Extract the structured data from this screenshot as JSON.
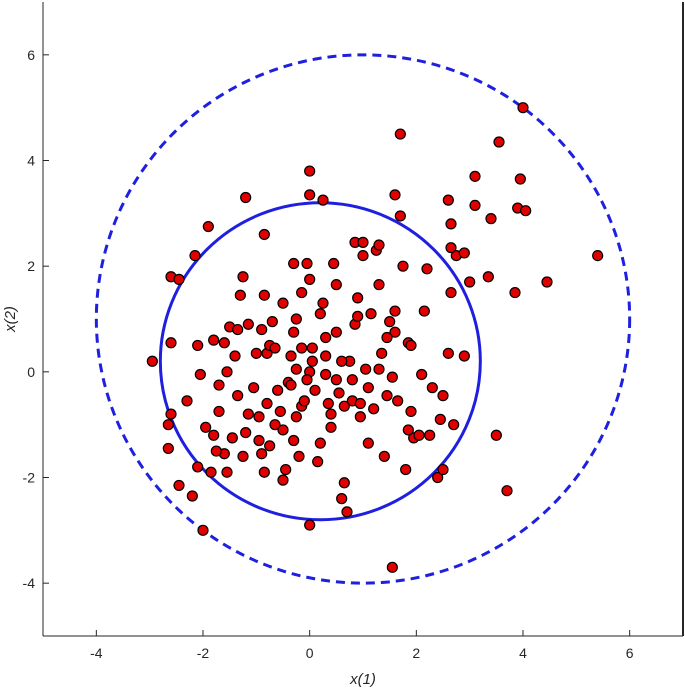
{
  "chart_data": {
    "type": "scatter",
    "title": "",
    "xlabel": "x(1)",
    "ylabel": "x(2)",
    "xlim": [
      -5,
      7
    ],
    "ylim": [
      -5,
      7
    ],
    "xticks": [
      -4,
      -2,
      0,
      2,
      4,
      6
    ],
    "yticks": [
      -4,
      -2,
      0,
      2,
      4,
      6
    ],
    "grid": false,
    "colors": {
      "marker_fill": "#e00000",
      "marker_edge": "#000000",
      "circle": "#1f1fe0"
    },
    "circles": [
      {
        "style": "solid",
        "center": [
          0.2,
          0.2
        ],
        "radius": 3.0
      },
      {
        "style": "dashed",
        "center": [
          1.0,
          1.0
        ],
        "radius": 5.0
      }
    ],
    "points": [
      [
        -2.95,
        0.2
      ],
      [
        -2.6,
        -0.8
      ],
      [
        -2.65,
        -1.45
      ],
      [
        -2.65,
        -1.0
      ],
      [
        -2.45,
        -2.15
      ],
      [
        -2.2,
        -2.35
      ],
      [
        -2.0,
        -3.0
      ],
      [
        -2.6,
        1.8
      ],
      [
        -2.45,
        1.75
      ],
      [
        -2.15,
        2.2
      ],
      [
        -1.9,
        2.75
      ],
      [
        -1.2,
        3.3
      ],
      [
        -0.85,
        2.6
      ],
      [
        -2.1,
        0.5
      ],
      [
        -1.95,
        -1.05
      ],
      [
        -1.85,
        -1.9
      ],
      [
        -1.8,
        -1.2
      ],
      [
        -1.7,
        -0.75
      ],
      [
        -1.6,
        -1.55
      ],
      [
        -1.55,
        -1.9
      ],
      [
        -1.7,
        -0.25
      ],
      [
        -1.55,
        0.0
      ],
      [
        -1.4,
        0.3
      ],
      [
        -1.35,
        -0.45
      ],
      [
        -1.2,
        -1.15
      ],
      [
        -1.15,
        -0.8
      ],
      [
        -1.05,
        -0.3
      ],
      [
        -0.95,
        -1.3
      ],
      [
        -0.9,
        -1.55
      ],
      [
        -0.85,
        -1.9
      ],
      [
        -0.8,
        -0.6
      ],
      [
        -0.75,
        -1.4
      ],
      [
        -0.8,
        0.35
      ],
      [
        -0.75,
        0.5
      ],
      [
        -0.65,
        0.45
      ],
      [
        -0.6,
        -0.35
      ],
      [
        -0.55,
        -0.75
      ],
      [
        -0.5,
        -1.1
      ],
      [
        -0.5,
        -2.05
      ],
      [
        -0.45,
        -1.85
      ],
      [
        -0.4,
        -0.2
      ],
      [
        -0.35,
        0.3
      ],
      [
        -0.3,
        0.75
      ],
      [
        -0.25,
        1.0
      ],
      [
        -0.25,
        -0.85
      ],
      [
        -0.2,
        -1.6
      ],
      [
        -0.15,
        -0.65
      ],
      [
        -0.15,
        1.5
      ],
      [
        -0.05,
        2.05
      ],
      [
        0.0,
        1.75
      ],
      [
        0.0,
        0.0
      ],
      [
        0.05,
        0.2
      ],
      [
        0.1,
        -0.35
      ],
      [
        0.15,
        -1.7
      ],
      [
        0.2,
        -1.35
      ],
      [
        0.2,
        1.1
      ],
      [
        0.25,
        1.3
      ],
      [
        0.3,
        0.3
      ],
      [
        0.35,
        -0.6
      ],
      [
        0.4,
        -0.8
      ],
      [
        0.45,
        2.05
      ],
      [
        0.5,
        1.65
      ],
      [
        0.5,
        0.75
      ],
      [
        0.55,
        -0.4
      ],
      [
        0.6,
        -2.4
      ],
      [
        0.65,
        -2.1
      ],
      [
        0.7,
        -2.65
      ],
      [
        0.75,
        0.2
      ],
      [
        0.8,
        -0.55
      ],
      [
        0.85,
        0.9
      ],
      [
        0.9,
        1.4
      ],
      [
        0.95,
        -0.85
      ],
      [
        1.0,
        2.2
      ],
      [
        1.05,
        0.05
      ],
      [
        1.1,
        -0.3
      ],
      [
        1.15,
        1.1
      ],
      [
        1.2,
        -0.7
      ],
      [
        1.25,
        2.3
      ],
      [
        1.3,
        2.4
      ],
      [
        1.3,
        1.65
      ],
      [
        1.35,
        0.35
      ],
      [
        1.4,
        -1.6
      ],
      [
        1.45,
        -0.45
      ],
      [
        1.5,
        0.95
      ],
      [
        1.55,
        -0.1
      ],
      [
        1.6,
        1.15
      ],
      [
        1.65,
        -0.55
      ],
      [
        1.75,
        2.0
      ],
      [
        1.8,
        -1.85
      ],
      [
        1.85,
        0.55
      ],
      [
        1.9,
        -0.75
      ],
      [
        1.95,
        -1.25
      ],
      [
        2.05,
        -1.2
      ],
      [
        2.1,
        -0.05
      ],
      [
        2.15,
        1.15
      ],
      [
        2.2,
        1.95
      ],
      [
        2.3,
        -0.3
      ],
      [
        2.4,
        -2.0
      ],
      [
        2.45,
        -0.9
      ],
      [
        2.5,
        -1.85
      ],
      [
        2.6,
        0.35
      ],
      [
        2.65,
        1.5
      ],
      [
        2.75,
        2.2
      ],
      [
        2.9,
        0.3
      ],
      [
        2.6,
        3.25
      ],
      [
        2.65,
        2.8
      ],
      [
        2.65,
        2.35
      ],
      [
        2.9,
        2.25
      ],
      [
        3.0,
        1.7
      ],
      [
        3.1,
        3.7
      ],
      [
        3.1,
        3.15
      ],
      [
        3.35,
        1.8
      ],
      [
        3.4,
        2.9
      ],
      [
        3.5,
        -1.2
      ],
      [
        3.55,
        4.35
      ],
      [
        3.7,
        -2.25
      ],
      [
        3.85,
        1.5
      ],
      [
        3.9,
        3.1
      ],
      [
        3.95,
        3.65
      ],
      [
        4.0,
        5.0
      ],
      [
        4.05,
        3.05
      ],
      [
        4.45,
        1.7
      ],
      [
        5.4,
        2.2
      ],
      [
        1.55,
        -3.7
      ],
      [
        0.0,
        -2.9
      ],
      [
        0.0,
        3.8
      ],
      [
        0.0,
        3.35
      ],
      [
        0.25,
        3.25
      ],
      [
        1.6,
        3.35
      ],
      [
        1.7,
        2.95
      ],
      [
        1.7,
        4.5
      ],
      [
        0.85,
        2.45
      ],
      [
        -1.25,
        1.8
      ],
      [
        -1.3,
        1.45
      ],
      [
        -1.5,
        0.85
      ],
      [
        -1.15,
        0.9
      ],
      [
        -0.85,
        1.45
      ],
      [
        -0.5,
        1.3
      ],
      [
        -0.7,
        0.95
      ],
      [
        0.05,
        0.45
      ],
      [
        -0.15,
        0.45
      ],
      [
        0.3,
        -0.05
      ],
      [
        -1.35,
        0.8
      ],
      [
        -1.6,
        0.55
      ],
      [
        -1.8,
        0.6
      ],
      [
        -2.3,
        -0.55
      ],
      [
        -2.05,
        -0.05
      ],
      [
        -2.6,
        0.55
      ],
      [
        -1.0,
        0.35
      ],
      [
        -0.9,
        0.8
      ],
      [
        -0.25,
        0.05
      ],
      [
        0.6,
        0.2
      ],
      [
        0.5,
        -0.15
      ],
      [
        0.95,
        -0.6
      ],
      [
        1.1,
        -1.35
      ],
      [
        0.8,
        -0.15
      ],
      [
        1.3,
        0.05
      ],
      [
        1.6,
        0.75
      ],
      [
        1.9,
        0.5
      ],
      [
        1.85,
        -1.1
      ],
      [
        2.25,
        -1.2
      ],
      [
        2.5,
        -0.45
      ],
      [
        2.7,
        -1.0
      ],
      [
        0.4,
        -1.05
      ],
      [
        -0.1,
        -0.55
      ],
      [
        -0.3,
        -1.3
      ],
      [
        -0.65,
        -1.0
      ],
      [
        -0.95,
        -0.85
      ],
      [
        -1.45,
        -1.25
      ],
      [
        -1.75,
        -1.5
      ],
      [
        -2.1,
        -1.8
      ],
      [
        -1.25,
        -1.6
      ],
      [
        -0.35,
        -0.25
      ],
      [
        0.9,
        1.05
      ],
      [
        1.45,
        0.65
      ],
      [
        1.0,
        2.45
      ],
      [
        -0.3,
        2.05
      ],
      [
        0.3,
        0.65
      ],
      [
        -0.05,
        -0.15
      ],
      [
        0.65,
        -0.65
      ]
    ]
  }
}
